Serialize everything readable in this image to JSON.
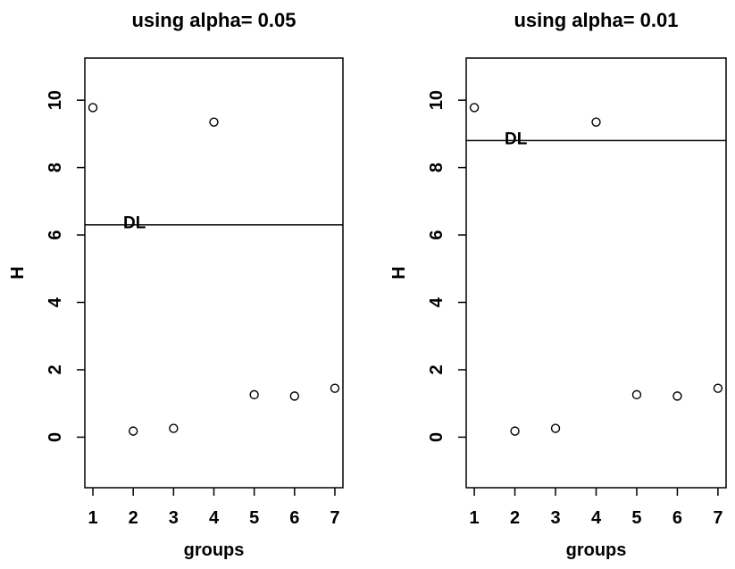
{
  "figure": {
    "background": "#ffffff",
    "foreground": "#000000"
  },
  "chart_data": [
    {
      "type": "scatter",
      "title": "using alpha= 0.05",
      "xlabel": "groups",
      "ylabel": "H",
      "x": [
        1,
        2,
        3,
        4,
        5,
        6,
        7
      ],
      "y": [
        9.78,
        0.18,
        0.26,
        9.35,
        1.26,
        1.22,
        1.45
      ],
      "xticks": [
        "1",
        "2",
        "3",
        "4",
        "5",
        "6",
        "7"
      ],
      "xtick_values": [
        1,
        2,
        3,
        4,
        5,
        6,
        7
      ],
      "yticks": [
        "0",
        "2",
        "4",
        "6",
        "8",
        "10"
      ],
      "ytick_values": [
        0,
        2,
        4,
        6,
        8,
        10
      ],
      "xlim": [
        0.8,
        7.2
      ],
      "ylim": [
        -1.5,
        11.25
      ],
      "grid": false,
      "legend": null,
      "marker": "open-circle",
      "color": "#000000",
      "hline": {
        "value": 6.3,
        "label": "DL"
      }
    },
    {
      "type": "scatter",
      "title": "using alpha= 0.01",
      "xlabel": "groups",
      "ylabel": "H",
      "x": [
        1,
        2,
        3,
        4,
        5,
        6,
        7
      ],
      "y": [
        9.78,
        0.18,
        0.26,
        9.35,
        1.26,
        1.22,
        1.45
      ],
      "xticks": [
        "1",
        "2",
        "3",
        "4",
        "5",
        "6",
        "7"
      ],
      "xtick_values": [
        1,
        2,
        3,
        4,
        5,
        6,
        7
      ],
      "yticks": [
        "0",
        "2",
        "4",
        "6",
        "8",
        "10"
      ],
      "ytick_values": [
        0,
        2,
        4,
        6,
        8,
        10
      ],
      "xlim": [
        0.8,
        7.2
      ],
      "ylim": [
        -1.5,
        11.25
      ],
      "grid": false,
      "legend": null,
      "marker": "open-circle",
      "color": "#000000",
      "hline": {
        "value": 8.8,
        "label": "DL"
      }
    }
  ]
}
